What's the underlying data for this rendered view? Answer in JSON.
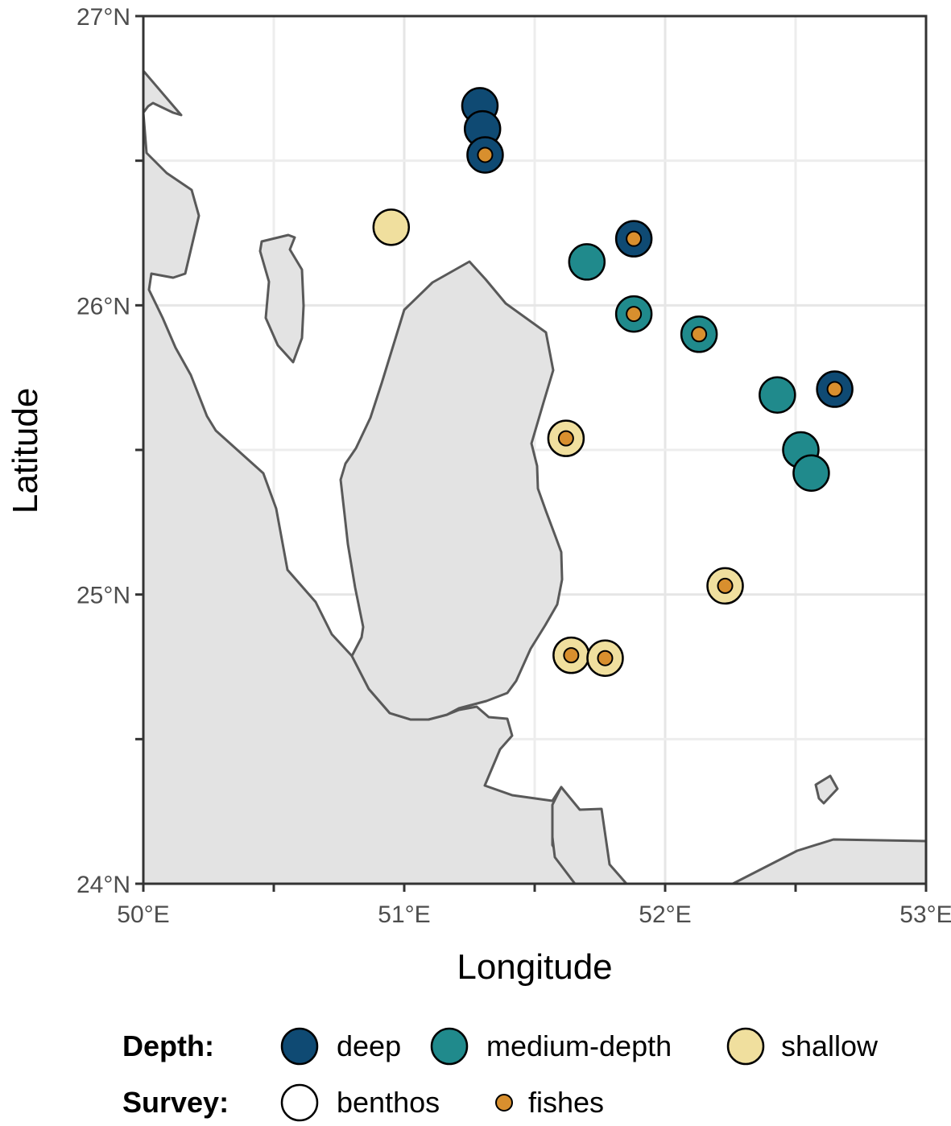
{
  "chart_data": {
    "type": "scatter",
    "xlabel": "Longitude",
    "ylabel": "Latitude",
    "xlim": [
      50,
      53
    ],
    "ylim": [
      24,
      27
    ],
    "x_ticks": [
      {
        "value": 50,
        "label": "50°E"
      },
      {
        "value": 51,
        "label": "51°E"
      },
      {
        "value": 52,
        "label": "52°E"
      },
      {
        "value": 53,
        "label": "53°E"
      }
    ],
    "y_ticks": [
      {
        "value": 24,
        "label": "24°N"
      },
      {
        "value": 25,
        "label": "25°N"
      },
      {
        "value": 26,
        "label": "26°N"
      },
      {
        "value": 27,
        "label": "27°N"
      }
    ],
    "grid": true,
    "legend_placement": "bottom",
    "depth_colors": {
      "deep": "#0f4a73",
      "medium-depth": "#208a8c",
      "shallow": "#f0df9e"
    },
    "fish_color": "#d88f2e",
    "points": [
      {
        "lon": 51.29,
        "lat": 26.69,
        "depth": "deep",
        "fishes": false
      },
      {
        "lon": 51.3,
        "lat": 26.61,
        "depth": "deep",
        "fishes": false
      },
      {
        "lon": 51.31,
        "lat": 26.52,
        "depth": "deep",
        "fishes": true
      },
      {
        "lon": 50.95,
        "lat": 26.27,
        "depth": "shallow",
        "fishes": false
      },
      {
        "lon": 51.88,
        "lat": 26.23,
        "depth": "deep",
        "fishes": true
      },
      {
        "lon": 51.7,
        "lat": 26.15,
        "depth": "medium-depth",
        "fishes": false
      },
      {
        "lon": 51.88,
        "lat": 25.97,
        "depth": "medium-depth",
        "fishes": true
      },
      {
        "lon": 52.13,
        "lat": 25.9,
        "depth": "medium-depth",
        "fishes": true
      },
      {
        "lon": 52.65,
        "lat": 25.71,
        "depth": "deep",
        "fishes": true
      },
      {
        "lon": 52.43,
        "lat": 25.69,
        "depth": "medium-depth",
        "fishes": false
      },
      {
        "lon": 51.62,
        "lat": 25.54,
        "depth": "shallow",
        "fishes": true
      },
      {
        "lon": 52.52,
        "lat": 25.5,
        "depth": "medium-depth",
        "fishes": false
      },
      {
        "lon": 52.56,
        "lat": 25.42,
        "depth": "medium-depth",
        "fishes": false
      },
      {
        "lon": 52.23,
        "lat": 25.03,
        "depth": "shallow",
        "fishes": true
      },
      {
        "lon": 51.64,
        "lat": 24.79,
        "depth": "shallow",
        "fishes": true
      },
      {
        "lon": 51.77,
        "lat": 24.78,
        "depth": "shallow",
        "fishes": true
      }
    ]
  },
  "legend": {
    "depth_title": "Depth:",
    "survey_title": "Survey:",
    "depth_items": [
      {
        "key": "deep",
        "label": "deep"
      },
      {
        "key": "medium-depth",
        "label": "medium-depth"
      },
      {
        "key": "shallow",
        "label": "shallow"
      }
    ],
    "survey_items": [
      {
        "key": "benthos",
        "label": "benthos"
      },
      {
        "key": "fishes",
        "label": "fishes"
      }
    ]
  }
}
